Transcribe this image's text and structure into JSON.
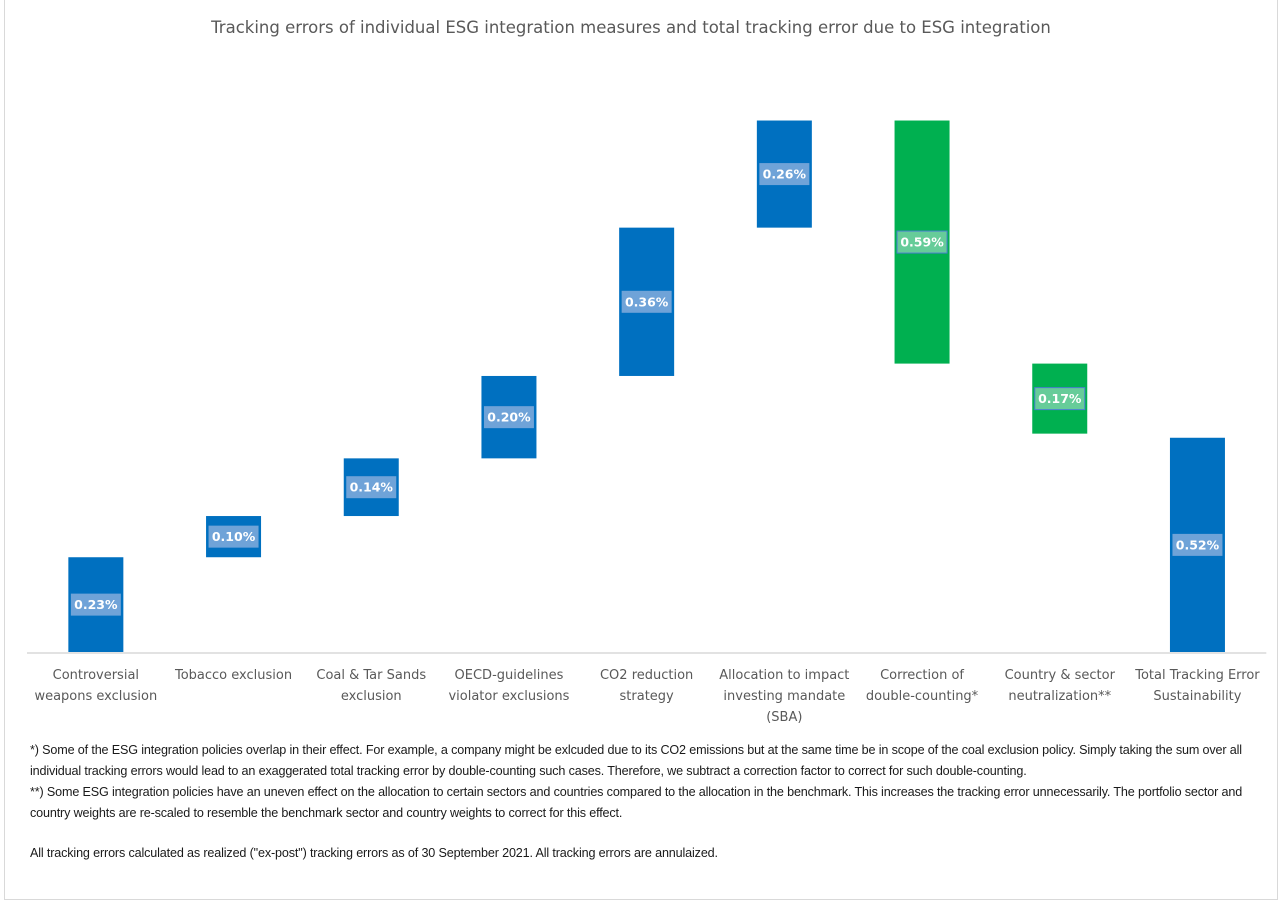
{
  "chart_data": {
    "type": "bar",
    "subtype": "waterfall",
    "title": "Tracking errors of individual ESG integration measures and total tracking error due to ESG integration",
    "xlabel": "",
    "ylabel": "",
    "ylim": [
      0,
      1.3
    ],
    "grid": false,
    "legend": "none",
    "value_unit": "%",
    "categories": [
      "Controversial weapons exclusion",
      "Tobacco exclusion",
      "Coal & Tar Sands exclusion",
      "OECD-guidelines violator exclusions",
      "CO2 reduction strategy",
      "Allocation to impact investing mandate (SBA)",
      "Correction of double-counting*",
      "Country & sector neutralization**",
      "Total Tracking Error Sustainability"
    ],
    "category_lines": [
      [
        "Controversial",
        "weapons exclusion"
      ],
      [
        "Tobacco exclusion"
      ],
      [
        "Coal & Tar Sands",
        "exclusion"
      ],
      [
        "OECD-guidelines",
        "violator exclusions"
      ],
      [
        "CO2 reduction",
        "strategy"
      ],
      [
        "Allocation to impact",
        "investing mandate",
        "(SBA)"
      ],
      [
        "Correction of",
        "double-counting*"
      ],
      [
        "Country & sector",
        "neutralization**"
      ],
      [
        "Total Tracking Error",
        "Sustainability"
      ]
    ],
    "values": [
      0.23,
      0.1,
      0.14,
      0.2,
      0.36,
      0.26,
      -0.59,
      -0.17,
      0.52
    ],
    "bar_kinds": [
      "increase",
      "increase",
      "increase",
      "increase",
      "increase",
      "increase",
      "decrease",
      "decrease",
      "total"
    ],
    "data_labels": [
      "0.23%",
      "0.10%",
      "0.14%",
      "0.20%",
      "0.36%",
      "0.26%",
      "0.59%",
      "0.17%",
      "0.52%"
    ],
    "colors": {
      "increase": "#0070c0",
      "decrease": "#00b050",
      "total": "#0070c0",
      "axis": "#d9d9d9",
      "label_box_blue": "#6fa3d8",
      "label_box_green": "#66cc99"
    }
  },
  "notes": {
    "footnote_1": "*)  Some of the ESG integration policies overlap in their effect. For example, a company might be exlcuded due to its CO2 emissions but at the same time be in scope of the coal exclusion policy. Simply taking the sum over all individual tracking errors would lead to an exaggerated total tracking error by double-counting such cases. Therefore, we subtract a correction factor to correct for such double-counting.",
    "footnote_2": "**) Some ESG integration policies have an uneven effect on the allocation to certain sectors and countries compared to the allocation in the benchmark. This increases the tracking error unnecessarily. The portfolio sector and country weights are re-scaled to resemble the benchmark sector and country weights to correct for this effect.",
    "disclaimer": "All tracking errors calculated as realized (\"ex-post\") tracking errors as of 30 September 2021. All tracking errors are annulaized."
  }
}
